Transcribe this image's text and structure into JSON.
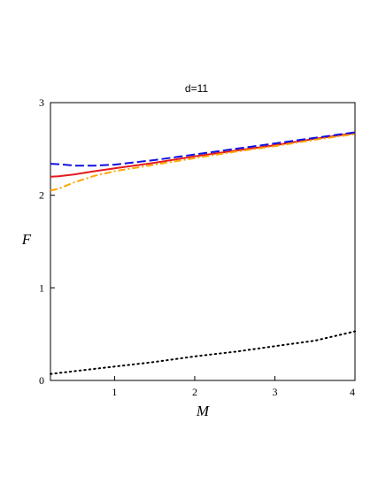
{
  "chart_data": {
    "type": "line",
    "title": "d=11",
    "xlabel": "M",
    "ylabel": "F",
    "xlim": [
      0.2,
      4
    ],
    "ylim": [
      0,
      3
    ],
    "xticks": [
      1,
      2,
      3,
      4
    ],
    "yticks": [
      0,
      1,
      2,
      3
    ],
    "grid": false,
    "series": [
      {
        "color": "#e41a1c",
        "dash": "solid",
        "x": [
          0.2,
          0.3,
          0.5,
          0.75,
          1.0,
          1.5,
          2.0,
          2.5,
          3.0,
          3.5,
          4.0
        ],
        "y": [
          2.2,
          2.205,
          2.225,
          2.26,
          2.29,
          2.35,
          2.42,
          2.48,
          2.54,
          2.61,
          2.67
        ]
      },
      {
        "color": "#1010e0",
        "dash": "dashed",
        "x": [
          0.2,
          0.3,
          0.5,
          0.75,
          1.0,
          1.5,
          2.0,
          2.5,
          3.0,
          3.5,
          4.0
        ],
        "y": [
          2.34,
          2.335,
          2.32,
          2.32,
          2.33,
          2.38,
          2.44,
          2.5,
          2.56,
          2.62,
          2.68
        ]
      },
      {
        "color": "#ffa500",
        "dash": "dashdot",
        "x": [
          0.2,
          0.3,
          0.5,
          0.75,
          1.0,
          1.5,
          2.0,
          2.5,
          3.0,
          3.5,
          4.0
        ],
        "y": [
          2.05,
          2.07,
          2.14,
          2.21,
          2.26,
          2.33,
          2.4,
          2.47,
          2.53,
          2.6,
          2.66
        ]
      },
      {
        "color": "#000000",
        "dash": "dotted",
        "x": [
          0.2,
          0.5,
          1.0,
          1.5,
          2.0,
          2.5,
          3.0,
          3.5,
          4.0
        ],
        "y": [
          0.07,
          0.1,
          0.15,
          0.2,
          0.26,
          0.31,
          0.37,
          0.43,
          0.53
        ]
      }
    ]
  }
}
